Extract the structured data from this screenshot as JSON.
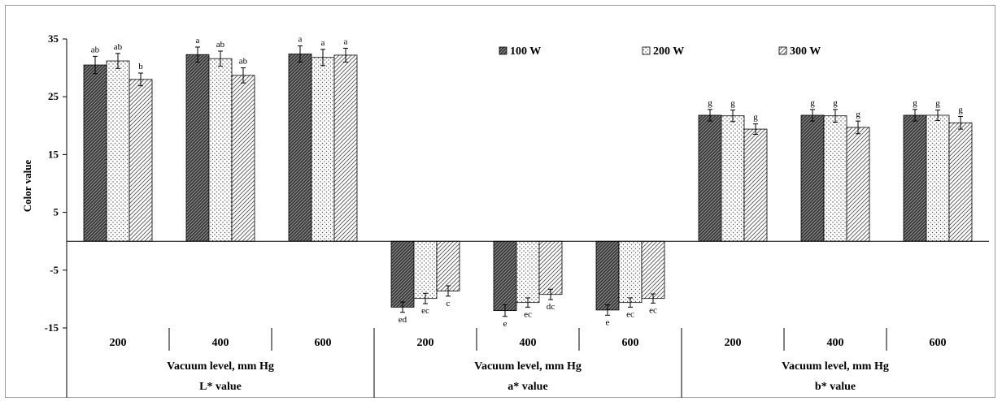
{
  "chart_data": {
    "type": "bar",
    "ylabel": "Color value",
    "ylim": [
      -15,
      35
    ],
    "yticks": [
      35,
      25,
      15,
      5,
      -5,
      -15
    ],
    "grid": false,
    "legend_position": "top-center",
    "groups": [
      {
        "name": "L* value",
        "xlabel": "Vacuum level, mm Hg",
        "categories": [
          "200",
          "400",
          "600"
        ]
      },
      {
        "name": "a* value",
        "xlabel": "Vacuum level, mm Hg",
        "categories": [
          "200",
          "400",
          "600"
        ]
      },
      {
        "name": "b* value",
        "xlabel": "Vacuum level, mm Hg",
        "categories": [
          "200",
          "400",
          "600"
        ]
      }
    ],
    "series": [
      {
        "name": "100 W",
        "pattern": "dark-diagonal",
        "values": [
          30.5,
          32.3,
          32.4,
          -11.4,
          -12.0,
          -11.9,
          21.8,
          21.8,
          21.8
        ],
        "errors": [
          1.5,
          1.3,
          1.4,
          0.9,
          1.0,
          0.9,
          1.0,
          1.0,
          1.0
        ],
        "labels": [
          "ab",
          "a",
          "a",
          "ed",
          "e",
          "e",
          "g",
          "g",
          "g"
        ]
      },
      {
        "name": "200 W",
        "pattern": "dotted",
        "values": [
          31.2,
          31.6,
          31.8,
          -9.9,
          -10.6,
          -10.6,
          21.7,
          21.7,
          21.8
        ],
        "errors": [
          1.3,
          1.3,
          1.4,
          0.9,
          0.8,
          0.8,
          1.0,
          1.1,
          0.9
        ],
        "labels": [
          "ab",
          "ab",
          "a",
          "ec",
          "ec",
          "ec",
          "g",
          "g",
          "g"
        ]
      },
      {
        "name": "300 W",
        "pattern": "light-diagonal",
        "values": [
          28.0,
          28.7,
          32.2,
          -8.6,
          -9.2,
          -9.9,
          19.4,
          19.7,
          20.5
        ],
        "errors": [
          1.1,
          1.3,
          1.2,
          0.9,
          0.9,
          0.8,
          0.9,
          1.1,
          1.1
        ],
        "labels": [
          "b",
          "ab",
          "a",
          "c",
          "dc",
          "ec",
          "g",
          "g",
          "g"
        ]
      }
    ]
  }
}
